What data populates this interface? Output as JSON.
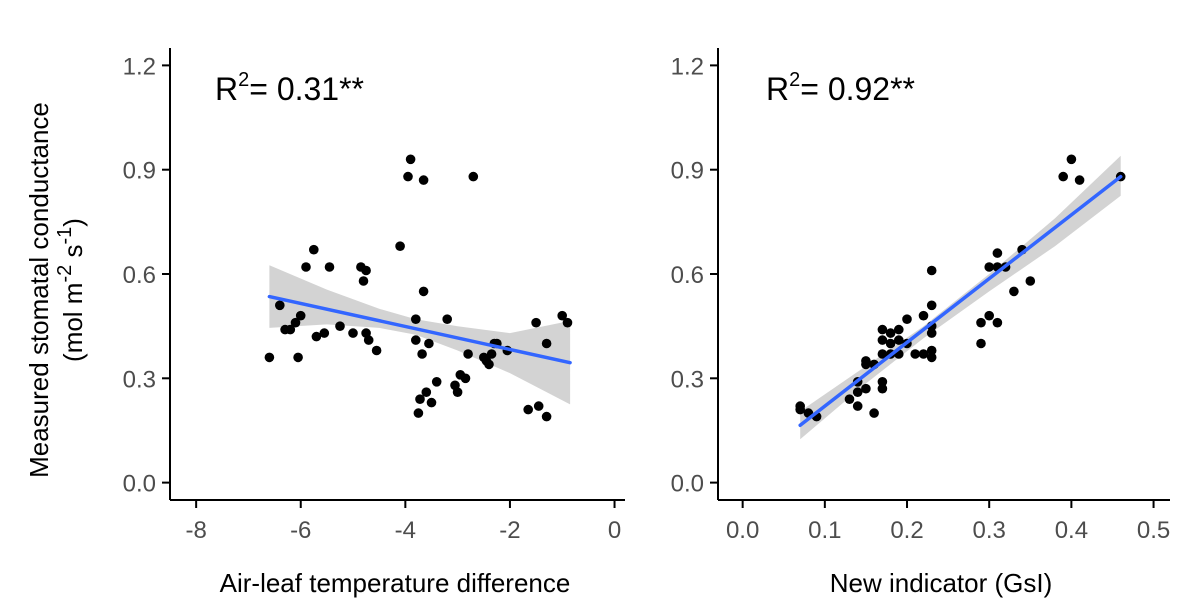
{
  "colors": {
    "point": "#000000",
    "fit_line": "#3366ff",
    "ci_band": "#d3d3d3",
    "axis": "#000000",
    "tick_text": "#4d4d4d"
  },
  "shared_ylabel": {
    "line1": "Measured stomatal conductance",
    "line2_pre": "(mol m",
    "line2_sup1": "-2",
    "line2_mid": " s",
    "line2_sup2": "-1",
    "line2_post": ")"
  },
  "chart_data": [
    {
      "type": "scatter",
      "xlabel": "Air-leaf temperature difference",
      "annotation": {
        "pre": "R",
        "sup": "2",
        "post": "= 0.31**"
      },
      "xlim": [
        -8.5,
        0.2
      ],
      "ylim": [
        -0.05,
        1.25
      ],
      "xticks": [
        -8,
        -6,
        -4,
        -2,
        0
      ],
      "xtick_labels": [
        "-8",
        "-6",
        "-4",
        "-2",
        "0"
      ],
      "yticks": [
        0.0,
        0.3,
        0.6,
        0.9,
        1.2
      ],
      "ytick_labels": [
        "0.0",
        "0.3",
        "0.6",
        "0.9",
        "1.2"
      ],
      "points": [
        [
          -6.6,
          0.36
        ],
        [
          -6.4,
          0.51
        ],
        [
          -6.3,
          0.44
        ],
        [
          -6.2,
          0.44
        ],
        [
          -6.1,
          0.46
        ],
        [
          -6.05,
          0.36
        ],
        [
          -6.0,
          0.48
        ],
        [
          -5.9,
          0.62
        ],
        [
          -5.75,
          0.67
        ],
        [
          -5.7,
          0.42
        ],
        [
          -5.55,
          0.43
        ],
        [
          -5.45,
          0.62
        ],
        [
          -5.25,
          0.45
        ],
        [
          -5.0,
          0.43
        ],
        [
          -4.85,
          0.62
        ],
        [
          -4.8,
          0.58
        ],
        [
          -4.75,
          0.61
        ],
        [
          -4.75,
          0.43
        ],
        [
          -4.7,
          0.41
        ],
        [
          -4.55,
          0.38
        ],
        [
          -4.1,
          0.68
        ],
        [
          -3.95,
          0.88
        ],
        [
          -3.9,
          0.93
        ],
        [
          -3.8,
          0.41
        ],
        [
          -3.8,
          0.47
        ],
        [
          -3.75,
          0.2
        ],
        [
          -3.72,
          0.24
        ],
        [
          -3.68,
          0.37
        ],
        [
          -3.65,
          0.87
        ],
        [
          -3.65,
          0.55
        ],
        [
          -3.6,
          0.26
        ],
        [
          -3.55,
          0.4
        ],
        [
          -3.5,
          0.23
        ],
        [
          -3.4,
          0.29
        ],
        [
          -3.2,
          0.47
        ],
        [
          -3.05,
          0.28
        ],
        [
          -3.0,
          0.26
        ],
        [
          -2.95,
          0.31
        ],
        [
          -2.85,
          0.3
        ],
        [
          -2.8,
          0.37
        ],
        [
          -2.7,
          0.88
        ],
        [
          -2.5,
          0.36
        ],
        [
          -2.45,
          0.35
        ],
        [
          -2.4,
          0.34
        ],
        [
          -2.35,
          0.37
        ],
        [
          -2.3,
          0.4
        ],
        [
          -2.25,
          0.4
        ],
        [
          -2.05,
          0.38
        ],
        [
          -1.65,
          0.21
        ],
        [
          -1.5,
          0.46
        ],
        [
          -1.45,
          0.22
        ],
        [
          -1.3,
          0.19
        ],
        [
          -1.3,
          0.4
        ],
        [
          -1.0,
          0.48
        ],
        [
          -0.9,
          0.46
        ]
      ],
      "fit": {
        "x": [
          -6.6,
          -0.85
        ],
        "y": [
          0.535,
          0.345
        ]
      },
      "ci": {
        "x": [
          -6.6,
          -5.5,
          -4.5,
          -3.8,
          -3.0,
          -2.0,
          -0.85
        ],
        "lower": [
          0.445,
          0.455,
          0.445,
          0.425,
          0.38,
          0.315,
          0.225
        ],
        "upper": [
          0.625,
          0.555,
          0.5,
          0.47,
          0.45,
          0.43,
          0.465
        ]
      }
    },
    {
      "type": "scatter",
      "xlabel": "New indicator (GsI)",
      "annotation": {
        "pre": "R",
        "sup": "2",
        "post": "= 0.92**"
      },
      "xlim": [
        -0.03,
        0.52
      ],
      "ylim": [
        -0.05,
        1.25
      ],
      "xticks": [
        0.0,
        0.1,
        0.2,
        0.3,
        0.4,
        0.5
      ],
      "xtick_labels": [
        "0.0",
        "0.1",
        "0.2",
        "0.3",
        "0.4",
        "0.5"
      ],
      "yticks": [
        0.0,
        0.3,
        0.6,
        0.9,
        1.2
      ],
      "ytick_labels": [
        "0.0",
        "0.3",
        "0.6",
        "0.9",
        "1.2"
      ],
      "points": [
        [
          0.07,
          0.22
        ],
        [
          0.07,
          0.21
        ],
        [
          0.08,
          0.2
        ],
        [
          0.09,
          0.19
        ],
        [
          0.13,
          0.24
        ],
        [
          0.14,
          0.29
        ],
        [
          0.14,
          0.26
        ],
        [
          0.14,
          0.22
        ],
        [
          0.15,
          0.35
        ],
        [
          0.15,
          0.34
        ],
        [
          0.15,
          0.27
        ],
        [
          0.16,
          0.34
        ],
        [
          0.16,
          0.2
        ],
        [
          0.17,
          0.44
        ],
        [
          0.17,
          0.41
        ],
        [
          0.17,
          0.37
        ],
        [
          0.17,
          0.29
        ],
        [
          0.17,
          0.27
        ],
        [
          0.18,
          0.43
        ],
        [
          0.18,
          0.4
        ],
        [
          0.18,
          0.37
        ],
        [
          0.19,
          0.44
        ],
        [
          0.19,
          0.41
        ],
        [
          0.19,
          0.37
        ],
        [
          0.2,
          0.47
        ],
        [
          0.2,
          0.4
        ],
        [
          0.21,
          0.37
        ],
        [
          0.22,
          0.48
        ],
        [
          0.22,
          0.37
        ],
        [
          0.23,
          0.61
        ],
        [
          0.23,
          0.51
        ],
        [
          0.23,
          0.45
        ],
        [
          0.23,
          0.43
        ],
        [
          0.23,
          0.38
        ],
        [
          0.23,
          0.36
        ],
        [
          0.29,
          0.46
        ],
        [
          0.29,
          0.4
        ],
        [
          0.3,
          0.62
        ],
        [
          0.3,
          0.48
        ],
        [
          0.31,
          0.66
        ],
        [
          0.31,
          0.62
        ],
        [
          0.31,
          0.46
        ],
        [
          0.32,
          0.62
        ],
        [
          0.33,
          0.55
        ],
        [
          0.34,
          0.67
        ],
        [
          0.35,
          0.58
        ],
        [
          0.39,
          0.88
        ],
        [
          0.4,
          0.93
        ],
        [
          0.41,
          0.87
        ],
        [
          0.46,
          0.88
        ]
      ],
      "fit": {
        "x": [
          0.07,
          0.46
        ],
        "y": [
          0.165,
          0.88
        ]
      },
      "ci": {
        "x": [
          0.07,
          0.15,
          0.22,
          0.3,
          0.38,
          0.46
        ],
        "lower": [
          0.125,
          0.285,
          0.415,
          0.55,
          0.68,
          0.825
        ],
        "upper": [
          0.205,
          0.335,
          0.45,
          0.6,
          0.76,
          0.94
        ]
      }
    }
  ]
}
